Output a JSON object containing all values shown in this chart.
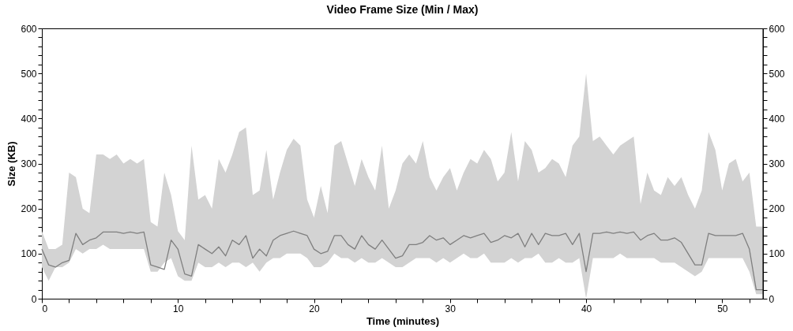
{
  "chart_data": {
    "type": "line",
    "title": "Video Frame Size (Min / Max)",
    "xlabel": "Time (minutes)",
    "ylabel": "Size (KB)",
    "xlim": [
      0,
      53
    ],
    "ylim": [
      0,
      600
    ],
    "y2lim": [
      0,
      600
    ],
    "xticks": [
      0,
      {
        "value": 2,
        "label": null
      },
      {
        "value": 4,
        "label": null
      },
      {
        "value": 6,
        "label": null
      },
      {
        "value": 8,
        "label": null
      },
      10,
      {
        "value": 12,
        "label": null
      },
      {
        "value": 14,
        "label": null
      },
      {
        "value": 16,
        "label": null
      },
      {
        "value": 18,
        "label": null
      },
      20,
      {
        "value": 22,
        "label": null
      },
      {
        "value": 24,
        "label": null
      },
      {
        "value": 26,
        "label": null
      },
      {
        "value": 28,
        "label": null
      },
      30,
      {
        "value": 32,
        "label": null
      },
      {
        "value": 34,
        "label": null
      },
      {
        "value": 36,
        "label": null
      },
      {
        "value": 38,
        "label": null
      },
      40,
      {
        "value": 42,
        "label": null
      },
      {
        "value": 44,
        "label": null
      },
      {
        "value": 46,
        "label": null
      },
      {
        "value": 48,
        "label": null
      },
      50,
      {
        "value": 52,
        "label": null
      }
    ],
    "yticks": [
      0,
      {
        "value": 20,
        "label": null
      },
      {
        "value": 40,
        "label": null
      },
      {
        "value": 60,
        "label": null
      },
      {
        "value": 80,
        "label": null
      },
      100,
      {
        "value": 120,
        "label": null
      },
      {
        "value": 140,
        "label": null
      },
      {
        "value": 160,
        "label": null
      },
      {
        "value": 180,
        "label": null
      },
      200,
      {
        "value": 220,
        "label": null
      },
      {
        "value": 240,
        "label": null
      },
      {
        "value": 260,
        "label": null
      },
      {
        "value": 280,
        "label": null
      },
      300,
      {
        "value": 320,
        "label": null
      },
      {
        "value": 340,
        "label": null
      },
      {
        "value": 360,
        "label": null
      },
      {
        "value": 380,
        "label": null
      },
      400,
      {
        "value": 420,
        "label": null
      },
      {
        "value": 440,
        "label": null
      },
      {
        "value": 460,
        "label": null
      },
      {
        "value": 480,
        "label": null
      },
      500,
      {
        "value": 520,
        "label": null
      },
      {
        "value": 540,
        "label": null
      },
      {
        "value": 560,
        "label": null
      },
      {
        "value": 580,
        "label": null
      },
      600
    ],
    "y2ticks": [
      0,
      {
        "value": 20,
        "label": null
      },
      {
        "value": 40,
        "label": null
      },
      {
        "value": 60,
        "label": null
      },
      {
        "value": 80,
        "label": null
      },
      100,
      {
        "value": 120,
        "label": null
      },
      {
        "value": 140,
        "label": null
      },
      {
        "value": 160,
        "label": null
      },
      {
        "value": 180,
        "label": null
      },
      200,
      {
        "value": 220,
        "label": null
      },
      {
        "value": 240,
        "label": null
      },
      {
        "value": 260,
        "label": null
      },
      {
        "value": 280,
        "label": null
      },
      300,
      {
        "value": 320,
        "label": null
      },
      {
        "value": 340,
        "label": null
      },
      {
        "value": 360,
        "label": null
      },
      {
        "value": 380,
        "label": null
      },
      400,
      {
        "value": 420,
        "label": null
      },
      {
        "value": 440,
        "label": null
      },
      {
        "value": 460,
        "label": null
      },
      {
        "value": 480,
        "label": null
      },
      500,
      {
        "value": 520,
        "label": null
      },
      {
        "value": 540,
        "label": null
      },
      {
        "value": 560,
        "label": null
      },
      {
        "value": 580,
        "label": null
      },
      600
    ],
    "x": [
      0,
      0.5,
      1,
      1.5,
      2,
      2.5,
      3,
      3.5,
      4,
      4.5,
      5,
      5.5,
      6,
      6.5,
      7,
      7.5,
      8,
      8.5,
      9,
      9.5,
      10,
      10.5,
      11,
      11.5,
      12,
      12.5,
      13,
      13.5,
      14,
      14.5,
      15,
      15.5,
      16,
      16.5,
      17,
      17.5,
      18,
      18.5,
      19,
      19.5,
      20,
      20.5,
      21,
      21.5,
      22,
      22.5,
      23,
      23.5,
      24,
      24.5,
      25,
      25.5,
      26,
      26.5,
      27,
      27.5,
      28,
      28.5,
      29,
      29.5,
      30,
      30.5,
      31,
      31.5,
      32,
      32.5,
      33,
      33.5,
      34,
      34.5,
      35,
      35.5,
      36,
      36.5,
      37,
      37.5,
      38,
      38.5,
      39,
      39.5,
      40,
      40.5,
      41,
      41.5,
      42,
      42.5,
      43,
      43.5,
      44,
      44.5,
      45,
      45.5,
      46,
      46.5,
      47,
      47.5,
      48,
      48.5,
      49,
      49.5,
      50,
      50.5,
      51,
      51.5,
      52,
      52.5,
      53
    ],
    "series": [
      {
        "color": "#7f7f7f",
        "values": [
          110,
          75,
          70,
          80,
          85,
          145,
          120,
          130,
          135,
          148,
          148,
          148,
          145,
          148,
          145,
          148,
          75,
          70,
          65,
          130,
          110,
          55,
          50,
          120,
          110,
          100,
          115,
          95,
          130,
          120,
          140,
          90,
          110,
          95,
          130,
          140,
          145,
          150,
          145,
          140,
          110,
          100,
          105,
          140,
          140,
          120,
          110,
          140,
          120,
          110,
          130,
          110,
          90,
          95,
          120,
          120,
          125,
          140,
          130,
          135,
          120,
          130,
          140,
          135,
          140,
          145,
          125,
          130,
          140,
          135,
          145,
          115,
          145,
          120,
          145,
          140,
          140,
          145,
          120,
          145,
          60,
          145,
          145,
          148,
          145,
          148,
          145,
          148,
          130,
          140,
          145,
          130,
          130,
          135,
          125,
          100,
          75,
          75,
          145,
          140,
          140,
          140,
          140,
          145,
          110,
          20,
          20
        ],
        "lower": [
          70,
          40,
          70,
          70,
          80,
          110,
          100,
          110,
          110,
          120,
          110,
          110,
          110,
          110,
          110,
          110,
          60,
          60,
          80,
          90,
          50,
          40,
          40,
          80,
          70,
          70,
          80,
          70,
          80,
          80,
          70,
          80,
          60,
          80,
          90,
          90,
          100,
          100,
          100,
          90,
          70,
          70,
          80,
          100,
          90,
          90,
          80,
          90,
          80,
          80,
          90,
          80,
          70,
          70,
          80,
          90,
          90,
          90,
          80,
          90,
          80,
          90,
          100,
          90,
          90,
          100,
          80,
          80,
          80,
          90,
          80,
          90,
          90,
          100,
          80,
          80,
          90,
          80,
          80,
          90,
          0,
          90,
          90,
          90,
          90,
          100,
          90,
          90,
          90,
          90,
          90,
          80,
          80,
          80,
          70,
          60,
          50,
          60,
          90,
          90,
          90,
          90,
          90,
          90,
          60,
          10,
          10
        ],
        "upper": [
          150,
          110,
          110,
          120,
          280,
          270,
          200,
          190,
          320,
          320,
          310,
          320,
          300,
          310,
          300,
          310,
          170,
          160,
          280,
          230,
          150,
          130,
          340,
          220,
          230,
          200,
          310,
          280,
          320,
          370,
          380,
          230,
          240,
          330,
          220,
          280,
          330,
          355,
          340,
          220,
          180,
          250,
          190,
          340,
          350,
          300,
          250,
          310,
          270,
          240,
          340,
          200,
          240,
          300,
          320,
          300,
          350,
          270,
          240,
          270,
          290,
          240,
          280,
          310,
          300,
          330,
          310,
          260,
          280,
          370,
          260,
          350,
          330,
          280,
          290,
          310,
          300,
          270,
          340,
          360,
          500,
          350,
          360,
          340,
          320,
          340,
          350,
          360,
          210,
          280,
          240,
          230,
          270,
          250,
          270,
          230,
          200,
          240,
          370,
          330,
          240,
          300,
          310,
          260,
          280,
          160,
          160
        ]
      }
    ]
  }
}
